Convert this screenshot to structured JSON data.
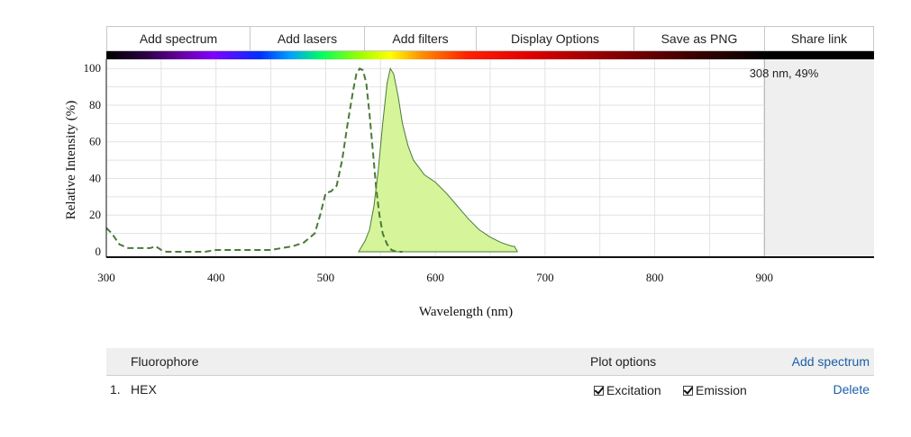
{
  "toolbar": {
    "buttons": [
      "Add spectrum",
      "Add lasers",
      "Add filters",
      "Display Options",
      "Save as PNG",
      "Share link"
    ]
  },
  "hover_readout": "308 nm, 49%",
  "colors": {
    "excitation": "#4a7a38",
    "emission_stroke": "#4a7a38",
    "emission_fill": "#d6f59a",
    "grid": "#e2e2e2",
    "out_of_range": "#efefef"
  },
  "chart_data": {
    "type": "line",
    "xlabel": "Wavelength (nm)",
    "ylabel": "Relative Intensity (%)",
    "xlim": [
      300,
      1000
    ],
    "ylim": [
      0,
      105
    ],
    "x_ticks": [
      300,
      400,
      500,
      600,
      700,
      800,
      900
    ],
    "y_ticks": [
      0,
      20,
      40,
      60,
      80,
      100
    ],
    "grid": true,
    "series": [
      {
        "name": "Excitation",
        "style": "dashed",
        "x": [
          300,
          305,
          312,
          320,
          330,
          340,
          345,
          350,
          355,
          360,
          370,
          380,
          390,
          400,
          420,
          440,
          450,
          460,
          470,
          480,
          490,
          495,
          500,
          505,
          510,
          515,
          520,
          525,
          528,
          531,
          534,
          537,
          540,
          543,
          546,
          549,
          552,
          556,
          560,
          565,
          570
        ],
        "values": [
          13,
          10,
          4,
          2,
          2,
          2,
          3,
          1,
          0,
          0,
          0,
          0,
          0,
          1,
          1,
          1,
          1,
          2,
          3,
          5,
          10,
          20,
          32,
          33,
          36,
          50,
          70,
          88,
          97,
          100,
          99,
          92,
          75,
          55,
          35,
          20,
          10,
          4,
          1,
          0,
          0
        ]
      },
      {
        "name": "Emission",
        "style": "filled",
        "x": [
          530,
          533,
          536,
          540,
          544,
          548,
          552,
          556,
          559,
          562,
          566,
          570,
          575,
          580,
          590,
          600,
          610,
          620,
          630,
          640,
          650,
          660,
          670,
          672,
          675
        ],
        "values": [
          0,
          3,
          6,
          12,
          25,
          45,
          70,
          92,
          100,
          97,
          85,
          70,
          58,
          50,
          42,
          38,
          32,
          25,
          18,
          12,
          8,
          5,
          3,
          3,
          0
        ]
      }
    ],
    "out_of_range_from": 900
  },
  "table": {
    "headers": {
      "fluorophore": "Fluorophore",
      "plot_options": "Plot options",
      "add_spectrum": "Add spectrum"
    },
    "rows": [
      {
        "index": "1.",
        "name": "HEX",
        "excitation_label": "Excitation",
        "emission_label": "Emission",
        "delete_label": "Delete"
      }
    ]
  }
}
